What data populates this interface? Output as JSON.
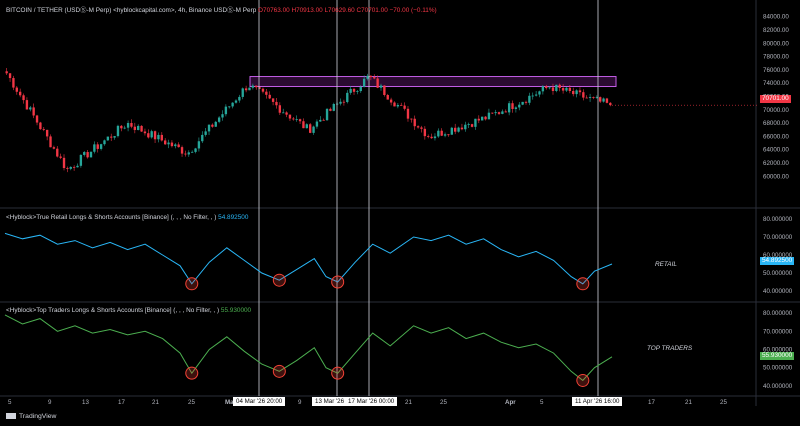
{
  "header": {
    "symbol": "BITCOIN / TETHER (USDⓈ-M Perp) <hyblockcapital.com>, 4h, Binance USDⓈ-M Perp",
    "ohlc_line": "O70763.00  H70913.00  L70629.60  C70701.00  −70.00 (−0.11%)"
  },
  "colors": {
    "background": "#000000",
    "up": "#26a69a",
    "down": "#f23645",
    "retail": "#29b6f6",
    "top_traders": "#4caf50",
    "highlight_box": "#9c27b0",
    "marker": "#f44336",
    "grid": "#1e1e1e"
  },
  "price_axis": [
    "84000.00",
    "82000.00",
    "80000.00",
    "78000.00",
    "76000.00",
    "74000.00",
    "72000.00",
    "70000.00",
    "68000.00",
    "66000.00",
    "64000.00",
    "62000.00",
    "60000.00"
  ],
  "current_price_label": "70701.00",
  "retail": {
    "label_prefix": "<Hyblock>True Retail Longs & Shorts Accounts [Binance] (, , , No Filter, , )",
    "label_value": "54.892500",
    "tag": "RETAIL",
    "axis": [
      "80.000000",
      "70.000000",
      "60.000000",
      "50.000000",
      "40.000000"
    ],
    "last_value": "54.892500"
  },
  "top_traders": {
    "label_prefix": "<Hyblock>Top Traders Longs & Shorts Accounts [Binance] (, , , No Filter, , )",
    "label_value": "55.930000",
    "tag": "TOP TRADERS",
    "axis": [
      "80.000000",
      "70.000000",
      "60.000000",
      "50.000000",
      "40.000000"
    ],
    "last_value": "55.930000"
  },
  "time_axis": [
    "5",
    "9",
    "13",
    "17",
    "21",
    "25",
    "Mar",
    "9",
    "21",
    "25",
    "Apr",
    "5",
    "17",
    "21",
    "25"
  ],
  "date_tags": [
    "04 Mar '26   20:00",
    "13 Mar '26",
    "17 Mar '26   00:00",
    "11 Apr '26   16:00"
  ],
  "footer": "TradingView",
  "chart_data": [
    {
      "type": "candlestick",
      "title": "BITCOIN / TETHER (USDⓈ-M Perp), 4h",
      "x_range": [
        "early Feb 2026",
        "mid Apr 2026"
      ],
      "ylim": [
        59000,
        85000
      ],
      "key_points": [
        {
          "date": "start",
          "price": 75500
        },
        {
          "date": "~Feb 9",
          "price": 61000
        },
        {
          "date": "~Feb 20",
          "price": 68000
        },
        {
          "date": "~Feb 24",
          "price": 63500
        },
        {
          "date": "04 Mar '26 20:00",
          "price": 73800
        },
        {
          "date": "~Mar 8",
          "price": 67000
        },
        {
          "date": "17 Mar '26 00:00",
          "price": 75000
        },
        {
          "date": "~Mar 28",
          "price": 66000
        },
        {
          "date": "~Apr 6",
          "price": 69000
        },
        {
          "date": "11 Apr '26",
          "price": 73500
        },
        {
          "date": "last",
          "price": 70701
        }
      ],
      "highlight_zone": [
        73500,
        75000
      ],
      "last": 70701
    },
    {
      "type": "line",
      "name": "RETAIL",
      "ylim": [
        35,
        85
      ],
      "points": [
        [
          0,
          72
        ],
        [
          3,
          69
        ],
        [
          6,
          71
        ],
        [
          9,
          66
        ],
        [
          12,
          68
        ],
        [
          15,
          64
        ],
        [
          18,
          67
        ],
        [
          21,
          63
        ],
        [
          24,
          66
        ],
        [
          27,
          60
        ],
        [
          30,
          54
        ],
        [
          32,
          44
        ],
        [
          35,
          56
        ],
        [
          38,
          64
        ],
        [
          41,
          57
        ],
        [
          44,
          50
        ],
        [
          47,
          46
        ],
        [
          50,
          52
        ],
        [
          53,
          58
        ],
        [
          55,
          48
        ],
        [
          57,
          45
        ],
        [
          60,
          56
        ],
        [
          63,
          66
        ],
        [
          66,
          61
        ],
        [
          70,
          70
        ],
        [
          73,
          68
        ],
        [
          76,
          71
        ],
        [
          79,
          66
        ],
        [
          82,
          69
        ],
        [
          85,
          63
        ],
        [
          88,
          59
        ],
        [
          91,
          62
        ],
        [
          94,
          57
        ],
        [
          97,
          48
        ],
        [
          99,
          44
        ],
        [
          101,
          51
        ],
        [
          104,
          55
        ]
      ],
      "last_value": 54.8925
    },
    {
      "type": "line",
      "name": "TOP TRADERS",
      "ylim": [
        35,
        85
      ],
      "points": [
        [
          0,
          79
        ],
        [
          3,
          74
        ],
        [
          6,
          77
        ],
        [
          9,
          70
        ],
        [
          12,
          73
        ],
        [
          15,
          69
        ],
        [
          18,
          71
        ],
        [
          21,
          68
        ],
        [
          24,
          70
        ],
        [
          27,
          66
        ],
        [
          30,
          58
        ],
        [
          32,
          47
        ],
        [
          35,
          60
        ],
        [
          38,
          67
        ],
        [
          41,
          59
        ],
        [
          44,
          52
        ],
        [
          47,
          48
        ],
        [
          50,
          54
        ],
        [
          53,
          61
        ],
        [
          55,
          50
        ],
        [
          57,
          47
        ],
        [
          60,
          58
        ],
        [
          63,
          69
        ],
        [
          66,
          62
        ],
        [
          70,
          73
        ],
        [
          73,
          69
        ],
        [
          76,
          72
        ],
        [
          79,
          66
        ],
        [
          82,
          69
        ],
        [
          85,
          64
        ],
        [
          88,
          61
        ],
        [
          91,
          63
        ],
        [
          94,
          58
        ],
        [
          97,
          48
        ],
        [
          99,
          43
        ],
        [
          101,
          50
        ],
        [
          104,
          56
        ]
      ],
      "last_value": 55.93
    }
  ]
}
